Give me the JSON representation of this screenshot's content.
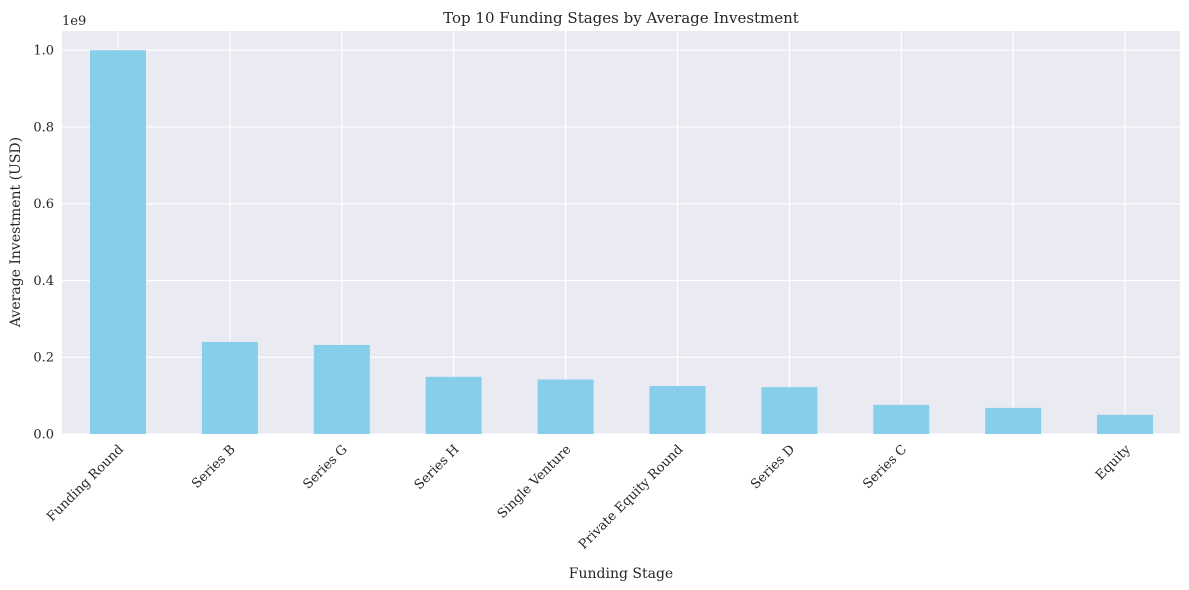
{
  "chart_data": {
    "type": "bar",
    "title": "Top 10 Funding Stages by Average Investment",
    "xlabel": "Funding Stage",
    "ylabel": "Average Investment (USD)",
    "y_offset_label": "1e9",
    "categories": [
      "Funding Round",
      "Series B",
      "Series G",
      "Series H",
      "Single Venture",
      "Private Equity Round",
      "Series D",
      "Series C",
      "",
      "Equity"
    ],
    "values": [
      1000000000,
      240000000,
      232000000,
      149000000,
      142000000,
      125000000,
      122000000,
      76000000,
      68000000,
      50000000
    ],
    "ylim": [
      0,
      1050000000
    ],
    "yticks": [
      0,
      200000000,
      400000000,
      600000000,
      800000000,
      1000000000
    ],
    "ytick_labels": [
      "0.0",
      "0.2",
      "0.4",
      "0.6",
      "0.8",
      "1.0"
    ],
    "grid": true,
    "colors": {
      "bar": "#87ceeb",
      "plot_bg": "#eaeaf2",
      "grid": "#ffffff"
    }
  }
}
